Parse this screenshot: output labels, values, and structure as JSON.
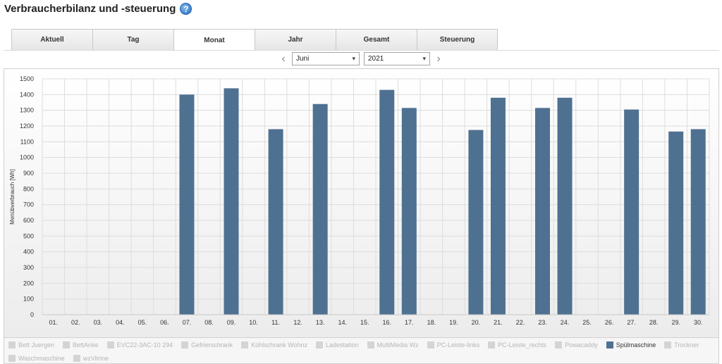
{
  "page": {
    "title": "Verbraucherbilanz und -steuerung",
    "help_icon": "?"
  },
  "tabs": [
    {
      "label": "Aktuell",
      "active": false
    },
    {
      "label": "Tag",
      "active": false
    },
    {
      "label": "Monat",
      "active": true
    },
    {
      "label": "Jahr",
      "active": false
    },
    {
      "label": "Gesamt",
      "active": false
    },
    {
      "label": "Steuerung",
      "active": false
    }
  ],
  "period": {
    "prev": "‹",
    "next": "›",
    "month": "Juni",
    "year": "2021"
  },
  "colors": {
    "bar": "#4f7191",
    "grid": "#dddddd",
    "legend_inactive": "#d4d4d4"
  },
  "chart_data": {
    "type": "bar",
    "ylabel": "Menübverbrauch [Wh]",
    "ylim": [
      0,
      1500
    ],
    "yticks": [
      0,
      100,
      200,
      300,
      400,
      500,
      600,
      700,
      800,
      900,
      1000,
      1100,
      1200,
      1300,
      1400,
      1500
    ],
    "grid": true,
    "categories": [
      "01.",
      "02.",
      "03.",
      "04.",
      "05.",
      "06.",
      "07.",
      "08.",
      "09.",
      "10.",
      "11.",
      "12.",
      "13.",
      "14.",
      "15.",
      "16.",
      "17.",
      "18.",
      "19.",
      "20.",
      "21.",
      "22.",
      "23.",
      "24.",
      "25.",
      "26.",
      "27.",
      "28.",
      "29.",
      "30."
    ],
    "series": [
      {
        "name": "Spülmaschine",
        "values": [
          0,
          0,
          0,
          0,
          0,
          0,
          1400,
          0,
          1440,
          0,
          1180,
          0,
          1340,
          0,
          0,
          1430,
          1315,
          0,
          0,
          1175,
          1380,
          0,
          1315,
          1380,
          0,
          0,
          1305,
          0,
          1165,
          1180
        ]
      }
    ]
  },
  "legend": {
    "items": [
      {
        "label": "Bett Juergen",
        "active": false
      },
      {
        "label": "BettAnke",
        "active": false
      },
      {
        "label": "EVC22-3AC-10 294",
        "active": false
      },
      {
        "label": "Gefrierschrank",
        "active": false
      },
      {
        "label": "Kühlschrank Wohnz",
        "active": false
      },
      {
        "label": "Ladestation",
        "active": false
      },
      {
        "label": "MultiMedia Wz",
        "active": false
      },
      {
        "label": "PC-Leiste-links",
        "active": false
      },
      {
        "label": "PC-Leiste_rechts",
        "active": false
      },
      {
        "label": "Powacaddy",
        "active": false
      },
      {
        "label": "Spülmaschine",
        "active": true
      },
      {
        "label": "Trockner",
        "active": false
      },
      {
        "label": "Waschmaschine",
        "active": false
      },
      {
        "label": "wzVitrine",
        "active": false
      }
    ]
  }
}
